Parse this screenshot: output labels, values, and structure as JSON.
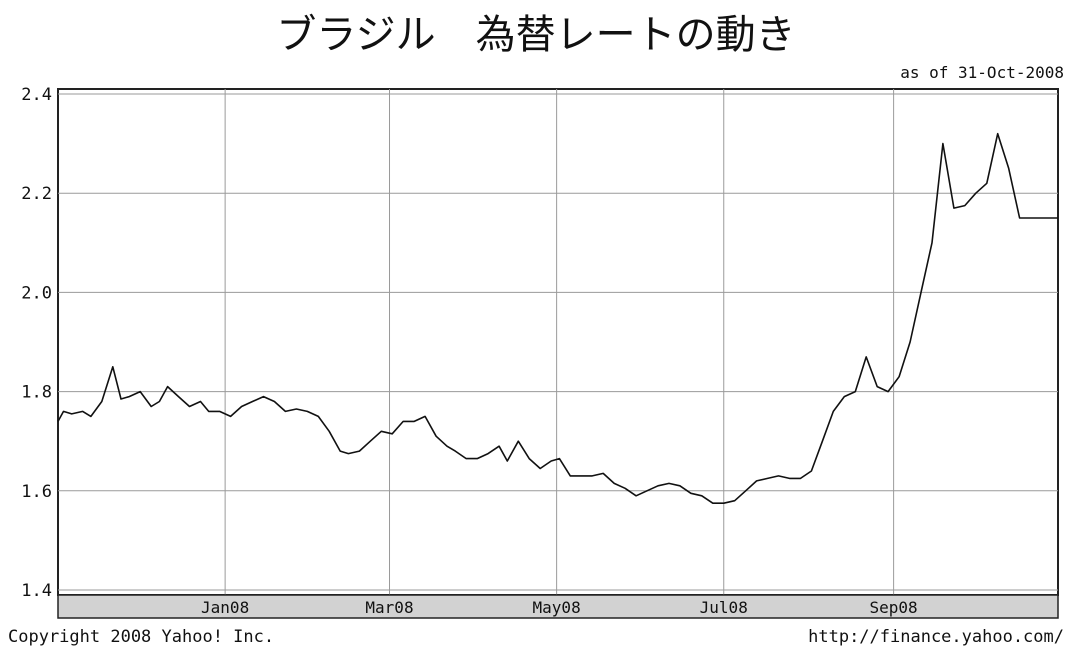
{
  "chart_data": {
    "type": "line",
    "title": "ブラジル　為替レートの動き",
    "subtitle": "as of 31-Oct-2008",
    "ylim": [
      1.4,
      2.4
    ],
    "y_ticks": [
      "1.4",
      "1.6",
      "1.8",
      "2.0",
      "2.2",
      "2.4"
    ],
    "x_ticks": [
      "Jan08",
      "Mar08",
      "May08",
      "Jul08",
      "Sep08"
    ],
    "x_tick_dates": [
      "2008-01-01",
      "2008-03-01",
      "2008-05-01",
      "2008-07-01",
      "2008-09-01"
    ],
    "xlim": [
      "2007-11-01",
      "2008-10-31"
    ],
    "grid": true,
    "footer_left": "Copyright 2008 Yahoo! Inc.",
    "footer_right": "http://finance.yahoo.com/",
    "series": [
      {
        "x": [
          "2007-11-01",
          "2007-11-03",
          "2007-11-06",
          "2007-11-10",
          "2007-11-13",
          "2007-11-17",
          "2007-11-21",
          "2007-11-24",
          "2007-11-27",
          "2007-12-01",
          "2007-12-05",
          "2007-12-08",
          "2007-12-11",
          "2007-12-15",
          "2007-12-19",
          "2007-12-23",
          "2007-12-26",
          "2007-12-30",
          "2008-01-03",
          "2008-01-07",
          "2008-01-11",
          "2008-01-15",
          "2008-01-19",
          "2008-01-23",
          "2008-01-27",
          "2008-01-31",
          "2008-02-04",
          "2008-02-08",
          "2008-02-12",
          "2008-02-15",
          "2008-02-19",
          "2008-02-23",
          "2008-02-27",
          "2008-03-02",
          "2008-03-06",
          "2008-03-10",
          "2008-03-14",
          "2008-03-18",
          "2008-03-22",
          "2008-03-25",
          "2008-03-29",
          "2008-04-02",
          "2008-04-06",
          "2008-04-10",
          "2008-04-13",
          "2008-04-17",
          "2008-04-21",
          "2008-04-25",
          "2008-04-29",
          "2008-05-02",
          "2008-05-06",
          "2008-05-10",
          "2008-05-14",
          "2008-05-18",
          "2008-05-22",
          "2008-05-26",
          "2008-05-30",
          "2008-06-03",
          "2008-06-07",
          "2008-06-11",
          "2008-06-15",
          "2008-06-19",
          "2008-06-23",
          "2008-06-27",
          "2008-07-01",
          "2008-07-05",
          "2008-07-09",
          "2008-07-13",
          "2008-07-17",
          "2008-07-21",
          "2008-07-25",
          "2008-07-29",
          "2008-08-02",
          "2008-08-06",
          "2008-08-10",
          "2008-08-14",
          "2008-08-18",
          "2008-08-22",
          "2008-08-26",
          "2008-08-30",
          "2008-09-03",
          "2008-09-07",
          "2008-09-11",
          "2008-09-15",
          "2008-09-19",
          "2008-09-23",
          "2008-09-27",
          "2008-10-01",
          "2008-10-05",
          "2008-10-09",
          "2008-10-13",
          "2008-10-17",
          "2008-10-21",
          "2008-10-25",
          "2008-10-29",
          "2008-10-31"
        ],
        "values": [
          1.74,
          1.76,
          1.755,
          1.76,
          1.75,
          1.78,
          1.85,
          1.785,
          1.79,
          1.8,
          1.77,
          1.78,
          1.81,
          1.79,
          1.77,
          1.78,
          1.76,
          1.76,
          1.75,
          1.77,
          1.78,
          1.79,
          1.78,
          1.76,
          1.765,
          1.76,
          1.75,
          1.72,
          1.68,
          1.675,
          1.68,
          1.7,
          1.72,
          1.715,
          1.74,
          1.74,
          1.75,
          1.71,
          1.69,
          1.68,
          1.665,
          1.665,
          1.675,
          1.69,
          1.66,
          1.7,
          1.665,
          1.645,
          1.66,
          1.665,
          1.63,
          1.63,
          1.63,
          1.635,
          1.615,
          1.605,
          1.59,
          1.6,
          1.61,
          1.615,
          1.61,
          1.595,
          1.59,
          1.575,
          1.575,
          1.58,
          1.6,
          1.62,
          1.625,
          1.63,
          1.625,
          1.625,
          1.64,
          1.7,
          1.76,
          1.79,
          1.8,
          1.87,
          1.81,
          1.8,
          1.83,
          1.9,
          2.0,
          2.1,
          2.3,
          2.17,
          2.175,
          2.2,
          2.22,
          2.32,
          2.25,
          2.15,
          2.15,
          2.15,
          2.15,
          2.15
        ]
      }
    ]
  }
}
